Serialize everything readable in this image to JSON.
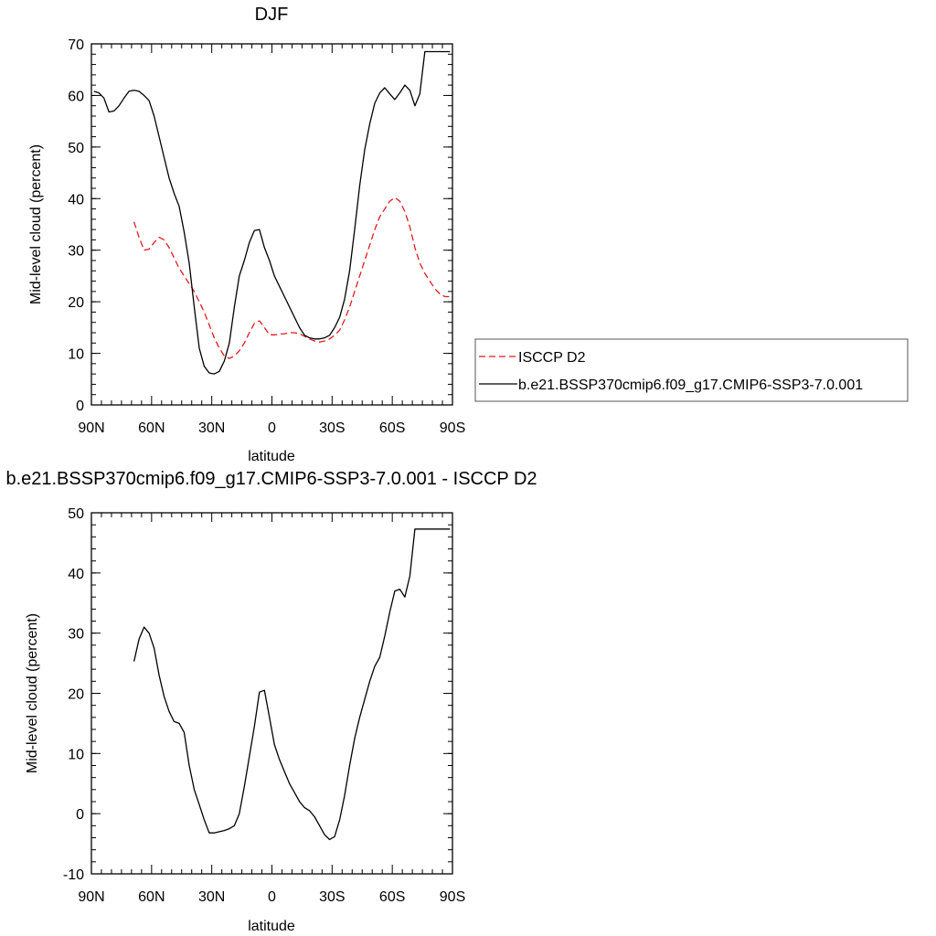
{
  "chart_data": [
    {
      "type": "line",
      "title": "DJF",
      "xlabel": "latitude",
      "ylabel": "Mid-level cloud (percent)",
      "xlim": [
        90,
        -90
      ],
      "ylim": [
        0,
        70
      ],
      "x_tick_values": [
        90,
        60,
        30,
        0,
        -30,
        -60,
        -90
      ],
      "x_tick_labels": [
        "90N",
        "60N",
        "30N",
        "0",
        "30S",
        "60S",
        "90S"
      ],
      "y_ticks": [
        0,
        10,
        20,
        30,
        40,
        50,
        60,
        70
      ],
      "legend_position": "right",
      "series": [
        {
          "name": "ISCCP D2",
          "color": "#e41a1c",
          "dash": "dashed",
          "x": [
            68.75,
            66.25,
            63.75,
            61.25,
            58.75,
            56.25,
            53.75,
            51.25,
            48.75,
            46.25,
            43.75,
            41.25,
            38.75,
            36.25,
            33.75,
            31.25,
            28.75,
            26.25,
            23.75,
            21.25,
            18.75,
            16.25,
            13.75,
            11.25,
            8.75,
            6.25,
            3.75,
            1.25,
            -1.25,
            -3.75,
            -6.25,
            -8.75,
            -11.25,
            -13.75,
            -16.25,
            -18.75,
            -21.25,
            -23.75,
            -26.25,
            -28.75,
            -31.25,
            -33.75,
            -36.25,
            -38.75,
            -41.25,
            -43.75,
            -46.25,
            -48.75,
            -51.25,
            -53.75,
            -56.25,
            -58.75,
            -61.25,
            -63.75,
            -66.25,
            -68.75,
            -71.25,
            -73.75,
            -76.25,
            -78.75,
            -81.25,
            -83.75,
            -86.25,
            -88.75
          ],
          "y": [
            35.5,
            32.5,
            30.0,
            30.2,
            31.5,
            32.5,
            32.0,
            30.5,
            28.5,
            26.5,
            25.0,
            23.5,
            22.0,
            20.0,
            18.0,
            15.5,
            13.0,
            11.0,
            9.5,
            9.0,
            9.5,
            10.5,
            12.0,
            14.0,
            15.8,
            16.3,
            15.0,
            13.6,
            13.6,
            13.7,
            13.8,
            14.0,
            14.0,
            13.8,
            13.3,
            12.8,
            12.4,
            12.2,
            12.4,
            12.8,
            13.5,
            14.5,
            16.5,
            19.0,
            22.0,
            25.0,
            28.0,
            31.0,
            34.0,
            36.5,
            38.0,
            39.5,
            40.2,
            39.5,
            37.5,
            34.5,
            30.5,
            27.5,
            25.5,
            24.0,
            22.5,
            21.5,
            21.0,
            21.0
          ]
        },
        {
          "name": "b.e21.BSSP370cmip6.f09_g17.CMIP6-SSP3-7.0.001",
          "color": "#000000",
          "dash": "solid",
          "x": [
            88.75,
            86.25,
            83.75,
            81.25,
            78.75,
            76.25,
            73.75,
            71.25,
            68.75,
            66.25,
            63.75,
            61.25,
            58.75,
            56.25,
            53.75,
            51.25,
            48.75,
            46.25,
            43.75,
            41.25,
            38.75,
            36.25,
            33.75,
            31.25,
            28.75,
            26.25,
            23.75,
            21.25,
            18.75,
            16.25,
            13.75,
            11.25,
            8.75,
            6.25,
            3.75,
            1.25,
            -1.25,
            -3.75,
            -6.25,
            -8.75,
            -11.25,
            -13.75,
            -16.25,
            -18.75,
            -21.25,
            -23.75,
            -26.25,
            -28.75,
            -31.25,
            -33.75,
            -36.25,
            -38.75,
            -41.25,
            -43.75,
            -46.25,
            -48.75,
            -51.25,
            -53.75,
            -56.25,
            -58.75,
            -61.25,
            -63.75,
            -66.25,
            -68.75,
            -71.25,
            -73.75,
            -76.25,
            -78.75,
            -81.25,
            -83.75,
            -86.25,
            -88.75
          ],
          "y": [
            60.8,
            60.5,
            59.5,
            56.8,
            57.0,
            58.0,
            59.5,
            60.8,
            61.0,
            60.8,
            60.0,
            59.0,
            56.0,
            52.0,
            48.0,
            44.0,
            41.0,
            38.5,
            33.5,
            27.5,
            19.0,
            11.0,
            7.5,
            6.2,
            6.0,
            6.5,
            8.5,
            12.0,
            19.0,
            25.0,
            28.0,
            31.5,
            33.8,
            34.0,
            30.5,
            28.0,
            25.0,
            23.0,
            21.0,
            19.0,
            17.0,
            15.0,
            13.5,
            13.0,
            12.8,
            12.8,
            13.0,
            13.5,
            15.0,
            17.0,
            20.5,
            26.0,
            34.0,
            42.5,
            49.5,
            54.5,
            58.5,
            60.5,
            61.5,
            60.3,
            59.2,
            60.5,
            62.0,
            61.0,
            58.0,
            60.3,
            68.5,
            68.5,
            68.5,
            68.5,
            68.5,
            68.5
          ]
        }
      ]
    },
    {
      "type": "line",
      "title": "b.e21.BSSP370cmip6.f09_g17.CMIP6-SSP3-7.0.001 - ISCCP D2",
      "xlabel": "latitude",
      "ylabel": "Mid-level cloud (percent)",
      "xlim": [
        90,
        -90
      ],
      "ylim": [
        -10,
        50
      ],
      "x_tick_values": [
        90,
        60,
        30,
        0,
        -30,
        -60,
        -90
      ],
      "x_tick_labels": [
        "90N",
        "60N",
        "30N",
        "0",
        "30S",
        "60S",
        "90S"
      ],
      "y_ticks": [
        -10,
        0,
        10,
        20,
        30,
        40,
        50
      ],
      "series": [
        {
          "color": "#000000",
          "dash": "solid",
          "x": [
            68.75,
            66.25,
            63.75,
            61.25,
            58.75,
            56.25,
            53.75,
            51.25,
            48.75,
            46.25,
            43.75,
            41.25,
            38.75,
            36.25,
            33.75,
            31.25,
            28.75,
            26.25,
            23.75,
            21.25,
            18.75,
            16.25,
            13.75,
            11.25,
            8.75,
            6.25,
            3.75,
            1.25,
            -1.25,
            -3.75,
            -6.25,
            -8.75,
            -11.25,
            -13.75,
            -16.25,
            -18.75,
            -21.25,
            -23.75,
            -26.25,
            -28.75,
            -31.25,
            -33.75,
            -36.25,
            -38.75,
            -41.25,
            -43.75,
            -46.25,
            -48.75,
            -51.25,
            -53.75,
            -56.25,
            -58.75,
            -61.25,
            -63.75,
            -66.25,
            -68.75,
            -71.25,
            -73.75,
            -76.25,
            -78.75,
            -81.25,
            -83.75,
            -86.25,
            -88.75
          ],
          "y": [
            25.3,
            29.0,
            31.0,
            30.0,
            27.5,
            23.0,
            19.5,
            17.0,
            15.3,
            15.0,
            13.5,
            8.0,
            4.0,
            1.5,
            -1.0,
            -3.2,
            -3.2,
            -3.0,
            -2.8,
            -2.5,
            -2.0,
            0.0,
            4.5,
            9.5,
            14.5,
            20.2,
            20.5,
            16.0,
            11.5,
            9.0,
            7.0,
            5.0,
            3.5,
            2.0,
            1.0,
            0.5,
            -0.5,
            -2.0,
            -3.5,
            -4.3,
            -3.8,
            -1.0,
            3.0,
            8.0,
            12.5,
            16.0,
            19.0,
            22.0,
            24.5,
            26.0,
            29.5,
            33.5,
            37.0,
            37.3,
            36.0,
            39.5,
            47.3,
            47.3,
            47.3,
            47.3,
            47.3,
            47.3,
            47.3,
            47.3
          ]
        }
      ]
    }
  ]
}
